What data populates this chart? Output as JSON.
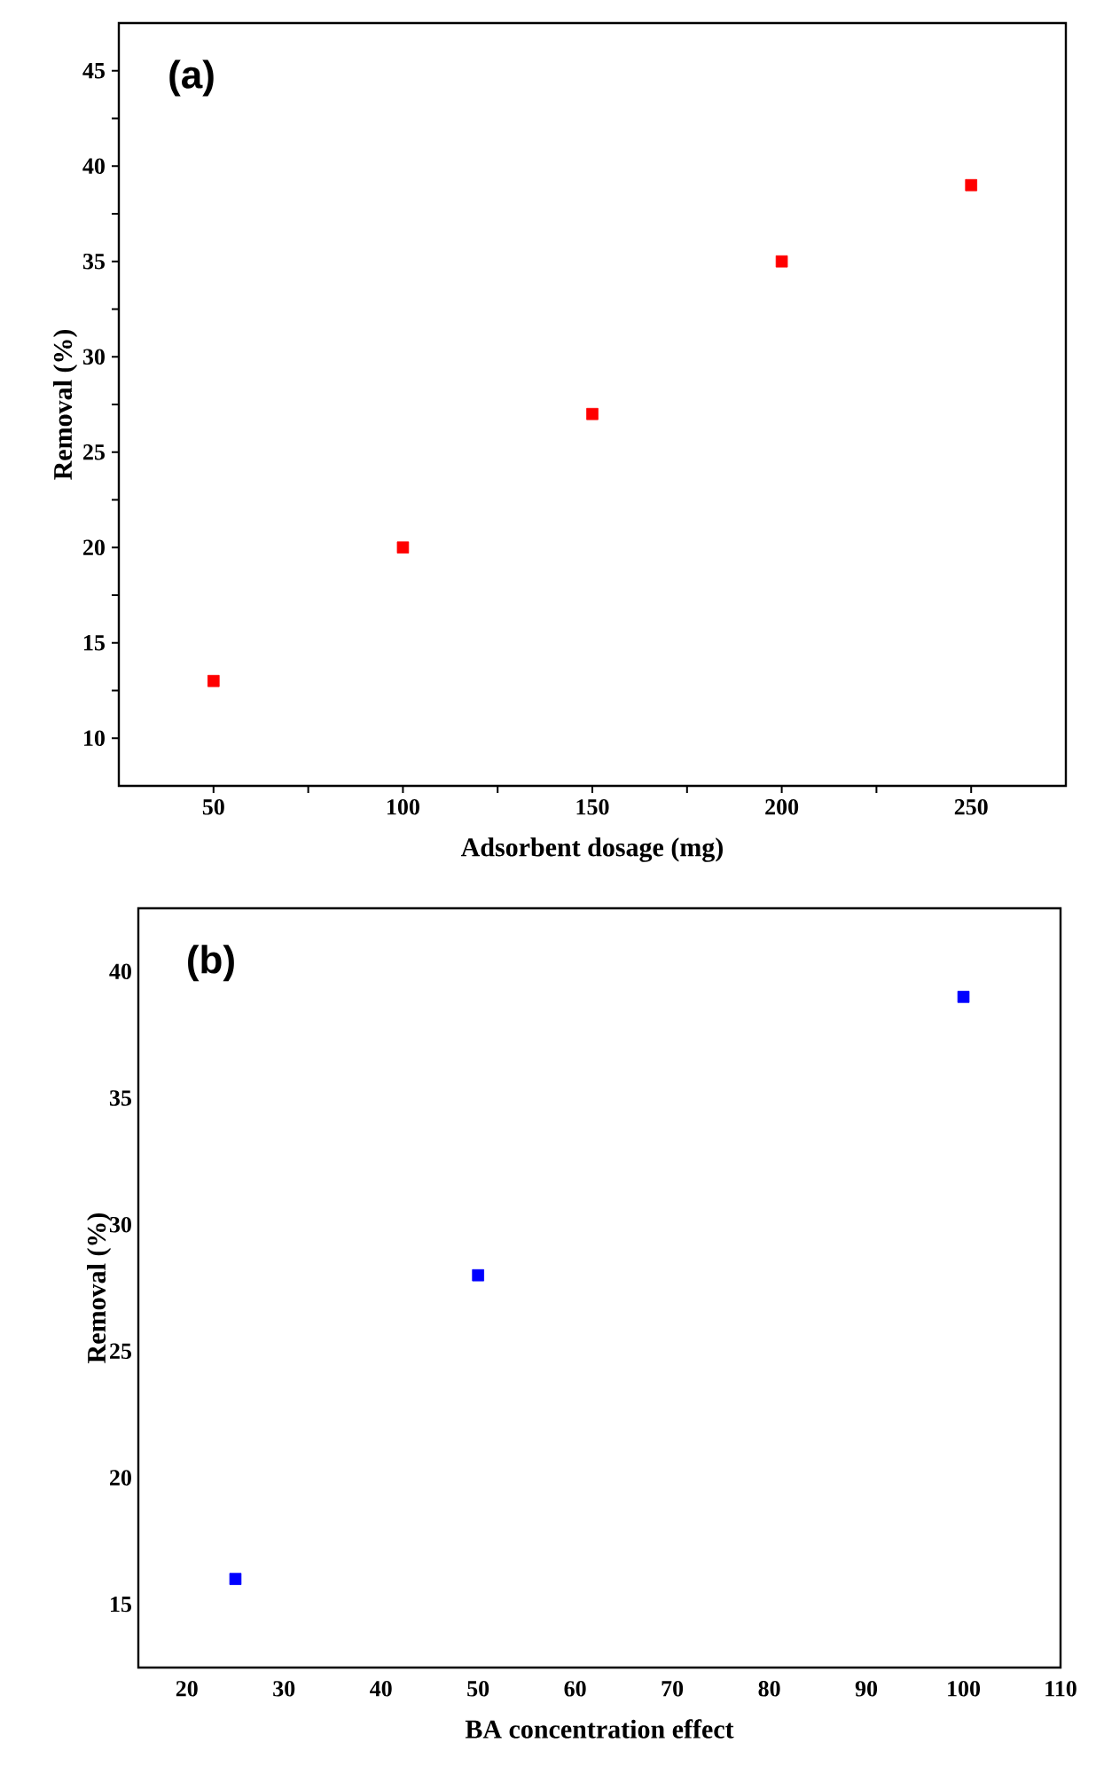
{
  "chart_data": [
    {
      "type": "scatter",
      "xlabel": "Adsorbent dosage (mg)",
      "ylabel": "Removal (%)",
      "annotations": [
        "(a)"
      ],
      "x": [
        50,
        100,
        150,
        200,
        250
      ],
      "values": [
        13,
        20,
        27,
        35,
        39
      ],
      "color": "#ff0000",
      "marker": "square",
      "xlim": [
        25,
        275
      ],
      "ylim": [
        7.5,
        47.5
      ],
      "xticks": [
        50,
        100,
        150,
        200,
        250
      ],
      "yticks": [
        10,
        15,
        20,
        25,
        30,
        35,
        40,
        45
      ]
    },
    {
      "type": "scatter",
      "xlabel": "BA concentration effect",
      "ylabel": "Removal (%)",
      "annotations": [
        "(b)"
      ],
      "x": [
        25,
        50,
        100
      ],
      "values": [
        16,
        28,
        39
      ],
      "color": "#0000ff",
      "marker": "square",
      "xlim": [
        15,
        110
      ],
      "ylim": [
        12.5,
        42.5
      ],
      "xticks": [
        20,
        30,
        40,
        50,
        60,
        70,
        80,
        90,
        100,
        110
      ],
      "yticks": [
        15,
        20,
        25,
        30,
        35,
        40
      ]
    }
  ]
}
